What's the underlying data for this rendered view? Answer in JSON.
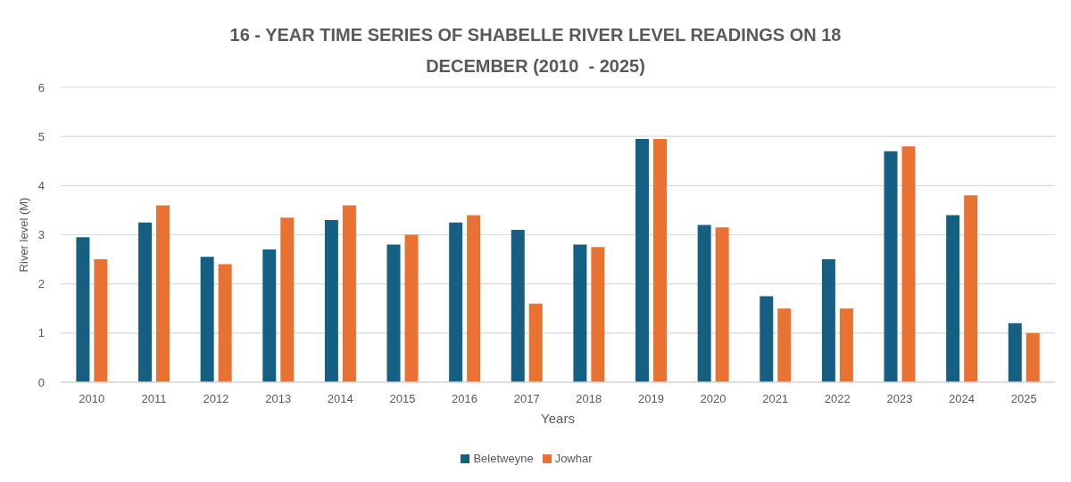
{
  "chart_data": {
    "type": "bar",
    "title": "16 - YEAR TIME SERIES OF SHABELLE RIVER LEVEL READINGS ON 18 DECEMBER (2010  - 2025)",
    "xlabel": "Years",
    "ylabel": "River level (M)",
    "categories": [
      "2010",
      "2011",
      "2012",
      "2013",
      "2014",
      "2015",
      "2016",
      "2017",
      "2018",
      "2019",
      "2020",
      "2021",
      "2022",
      "2023",
      "2024",
      "2025"
    ],
    "series": [
      {
        "name": "Beletweyne",
        "color": "#156082",
        "values": [
          2.95,
          3.25,
          2.55,
          2.7,
          3.3,
          2.8,
          3.25,
          3.1,
          2.8,
          4.95,
          3.2,
          1.75,
          2.5,
          4.7,
          3.4,
          1.2
        ]
      },
      {
        "name": "Jowhar",
        "color": "#e97132",
        "values": [
          2.5,
          3.6,
          2.4,
          3.35,
          3.6,
          3.0,
          3.4,
          1.6,
          2.75,
          4.95,
          3.15,
          1.5,
          1.5,
          4.8,
          3.8,
          1.0
        ]
      }
    ],
    "ylim": [
      0,
      6
    ],
    "yticks": [
      0,
      1,
      2,
      3,
      4,
      5,
      6
    ],
    "grid": "y",
    "legend": "bottom"
  }
}
